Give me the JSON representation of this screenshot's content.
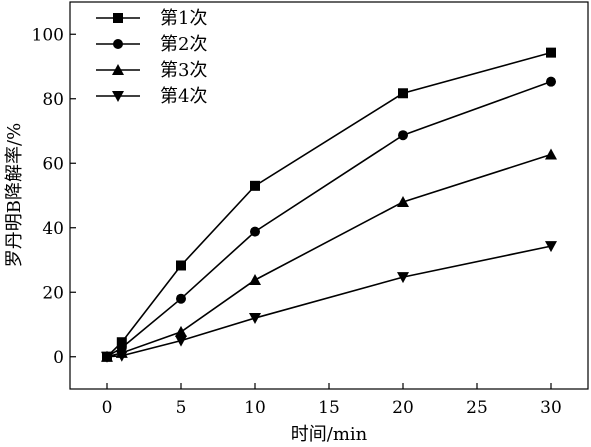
{
  "chart_data": {
    "type": "line",
    "title": "",
    "xlabel": "时间/min",
    "ylabel": "罗丹明B降解率/%",
    "xlim": [
      -2.5,
      32.5
    ],
    "ylim": [
      -10,
      110
    ],
    "xticks": [
      0,
      5,
      10,
      15,
      20,
      25,
      30
    ],
    "yticks": [
      0,
      20,
      40,
      60,
      80,
      100
    ],
    "grid": false,
    "legend_position": "top-left",
    "series": [
      {
        "name": "第1次",
        "marker": "square",
        "x": [
          0,
          1,
          5,
          10,
          20,
          30
        ],
        "values": [
          0,
          4.5,
          28.3,
          53.0,
          81.7,
          94.3
        ]
      },
      {
        "name": "第2次",
        "marker": "circle",
        "x": [
          0,
          1,
          5,
          10,
          20,
          30
        ],
        "values": [
          0,
          2.8,
          18.0,
          38.8,
          68.7,
          85.3
        ]
      },
      {
        "name": "第3次",
        "marker": "triangle-up",
        "x": [
          0,
          1,
          5,
          10,
          20,
          30
        ],
        "values": [
          0,
          1.2,
          7.7,
          23.8,
          48.0,
          62.7
        ]
      },
      {
        "name": "第4次",
        "marker": "triangle-down",
        "x": [
          0,
          1,
          5,
          10,
          20,
          30
        ],
        "values": [
          0,
          0.3,
          5.0,
          12.0,
          24.7,
          34.3
        ]
      }
    ]
  }
}
